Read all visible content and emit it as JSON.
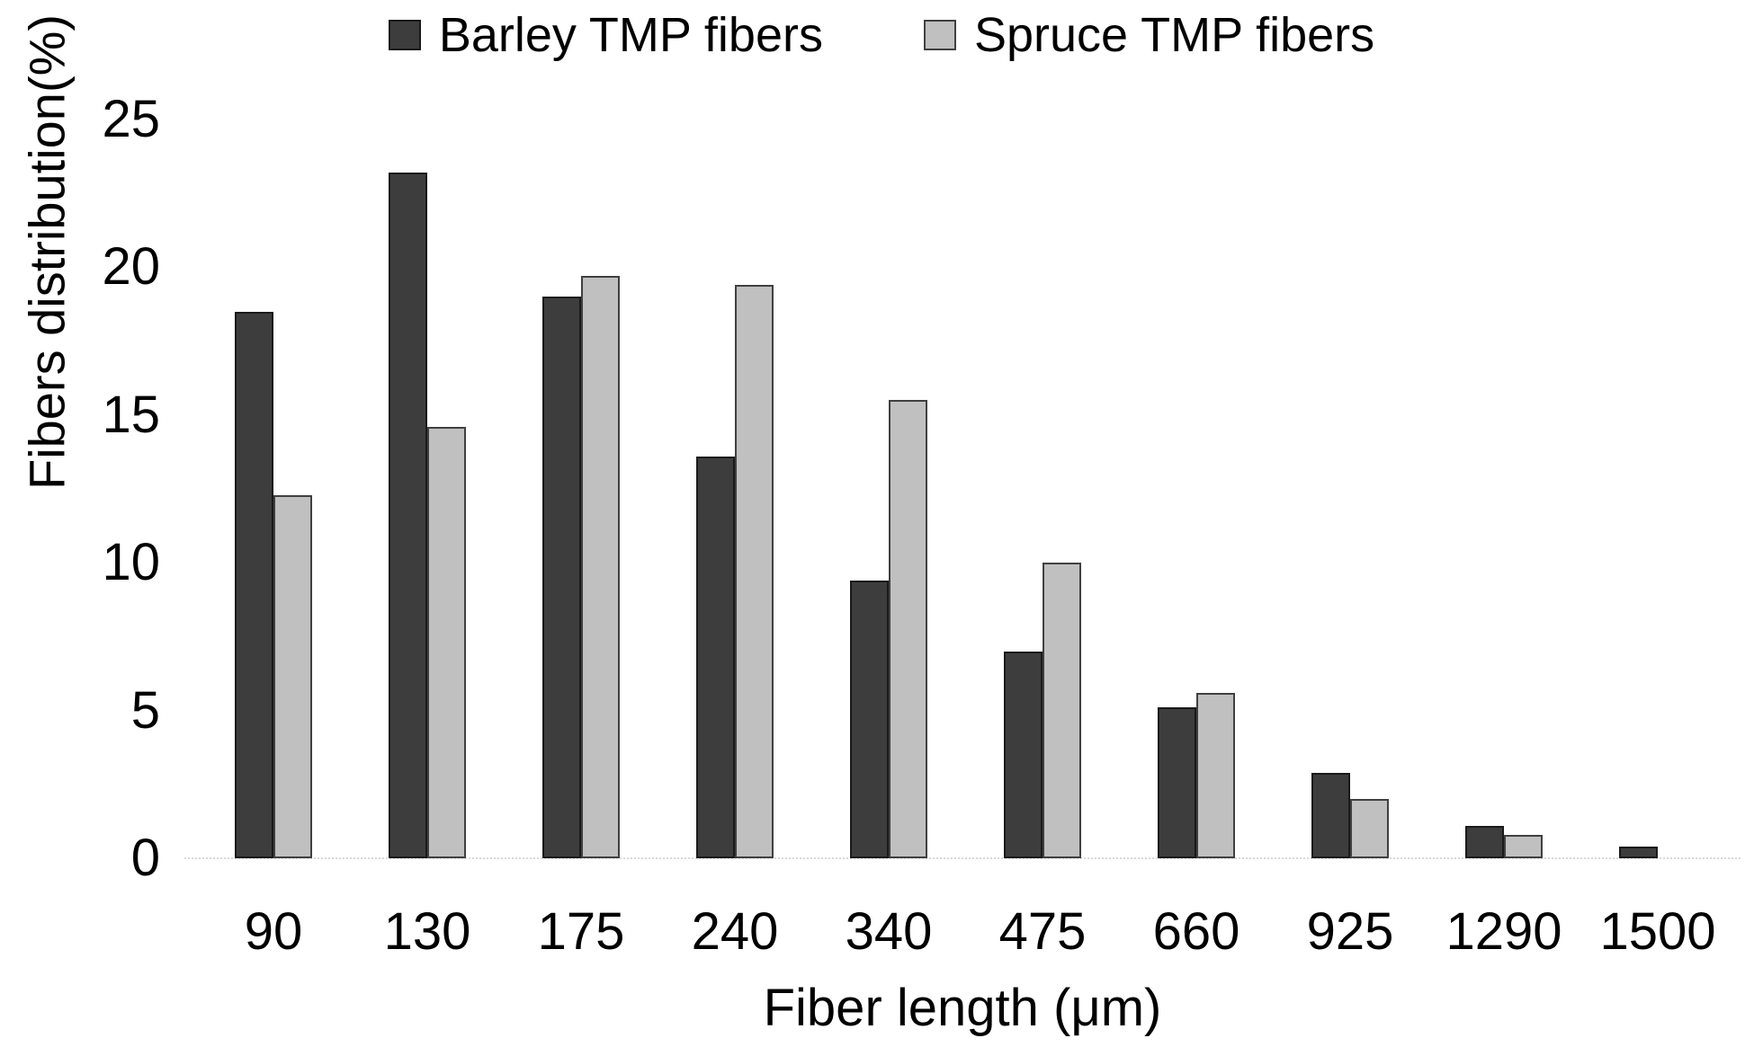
{
  "chart_data": {
    "type": "bar",
    "categories": [
      "90",
      "130",
      "175",
      "240",
      "340",
      "475",
      "660",
      "925",
      "1290",
      "1500"
    ],
    "series": [
      {
        "name": "Barley TMP fibers",
        "color": "#3d3d3d",
        "border_color": "#1a1a1a",
        "values": [
          18.5,
          23.2,
          19.0,
          13.6,
          9.4,
          7.0,
          5.1,
          2.9,
          1.1,
          0.4
        ]
      },
      {
        "name": "Spruce TMP fibers",
        "color": "#c0c0c0",
        "border_color": "#404040",
        "values": [
          12.3,
          14.6,
          19.7,
          19.4,
          15.5,
          10.0,
          5.6,
          2.0,
          0.8,
          0
        ]
      }
    ],
    "title": "",
    "xlabel": "Fiber length (μm)",
    "ylabel": "Fibers distribution(%)",
    "ylim": [
      0,
      25
    ],
    "yticks": [
      0,
      5,
      10,
      15,
      20,
      25
    ],
    "legend_position": "top",
    "grid": false,
    "baseline_color": "#d9d9d9",
    "background_color": "#ffffff"
  }
}
